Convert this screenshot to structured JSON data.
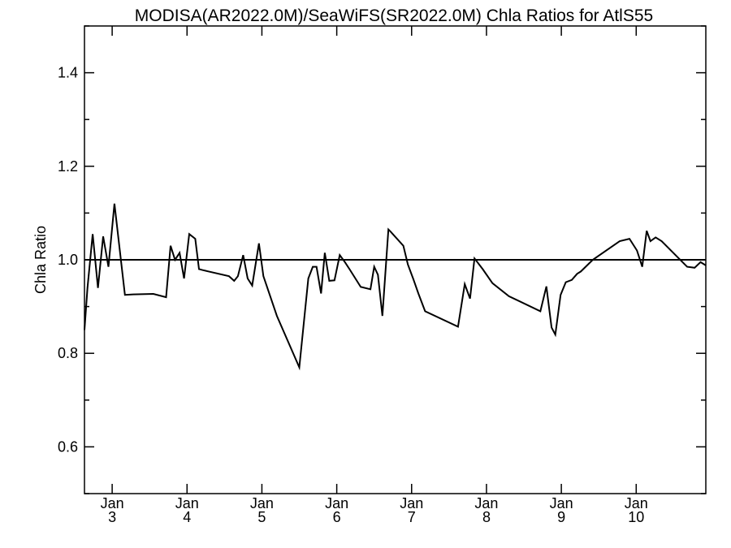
{
  "chart_data": {
    "type": "line",
    "title": "MODISA(AR2022.0M)/SeaWiFS(SR2022.0M)  Chla Ratios for AtlS55",
    "xlabel": "",
    "ylabel": "Chla Ratio",
    "ylim": [
      0.5,
      1.5
    ],
    "yticks": [
      0.6,
      0.8,
      1.0,
      1.2,
      1.4
    ],
    "ytick_labels": [
      "0.6",
      "0.8",
      "1.0",
      "1.2",
      "1.4"
    ],
    "xlim": [
      2.63,
      10.93
    ],
    "xticks": [
      {
        "x": 3,
        "line1": "Jan",
        "line2": "3"
      },
      {
        "x": 4,
        "line1": "Jan",
        "line2": "4"
      },
      {
        "x": 5,
        "line1": "Jan",
        "line2": "5"
      },
      {
        "x": 6,
        "line1": "Jan",
        "line2": "6"
      },
      {
        "x": 7,
        "line1": "Jan",
        "line2": "7"
      },
      {
        "x": 8,
        "line1": "Jan",
        "line2": "8"
      },
      {
        "x": 9,
        "line1": "Jan",
        "line2": "9"
      },
      {
        "x": 10,
        "line1": "Jan",
        "line2": "10"
      }
    ],
    "reference_line": 1.0,
    "grid": false,
    "series": [
      {
        "x": [
          2.63,
          2.67,
          2.74,
          2.81,
          2.88,
          2.95,
          3.03,
          3.17,
          3.28,
          3.55,
          3.72,
          3.78,
          3.84,
          3.9,
          3.96,
          4.03,
          4.11,
          4.16,
          4.21,
          4.56,
          4.63,
          4.68,
          4.75,
          4.81,
          4.87,
          4.96,
          5.02,
          5.2,
          5.5,
          5.62,
          5.68,
          5.73,
          5.79,
          5.84,
          5.9,
          5.97,
          6.04,
          6.11,
          6.17,
          6.32,
          6.45,
          6.5,
          6.55,
          6.61,
          6.69,
          6.72,
          6.89,
          6.95,
          7.02,
          7.09,
          7.18,
          7.62,
          7.71,
          7.78,
          7.84,
          7.95,
          8.08,
          8.3,
          8.72,
          8.8,
          8.87,
          8.92,
          8.99,
          9.06,
          9.14,
          9.21,
          9.26,
          9.42,
          9.78,
          9.91,
          10.01,
          10.08,
          10.14,
          10.19,
          10.26,
          10.34,
          10.68,
          10.78,
          10.86,
          10.93
        ],
        "y": [
          0.85,
          0.94,
          1.055,
          0.94,
          1.05,
          0.985,
          1.12,
          0.925,
          0.926,
          0.927,
          0.92,
          1.03,
          1.0,
          1.015,
          0.96,
          1.055,
          1.045,
          0.98,
          0.978,
          0.965,
          0.955,
          0.965,
          1.01,
          0.96,
          0.945,
          1.035,
          0.965,
          0.88,
          0.77,
          0.96,
          0.985,
          0.985,
          0.928,
          1.015,
          0.955,
          0.956,
          1.01,
          0.995,
          0.98,
          0.942,
          0.937,
          0.985,
          0.968,
          0.88,
          1.065,
          1.06,
          1.03,
          0.99,
          0.96,
          0.928,
          0.89,
          0.857,
          0.948,
          0.917,
          1.003,
          0.98,
          0.95,
          0.922,
          0.89,
          0.943,
          0.855,
          0.84,
          0.925,
          0.952,
          0.957,
          0.97,
          0.975,
          1.0,
          1.04,
          1.045,
          1.02,
          0.985,
          1.062,
          1.04,
          1.048,
          1.04,
          0.985,
          0.983,
          0.995,
          0.988
        ]
      }
    ]
  }
}
